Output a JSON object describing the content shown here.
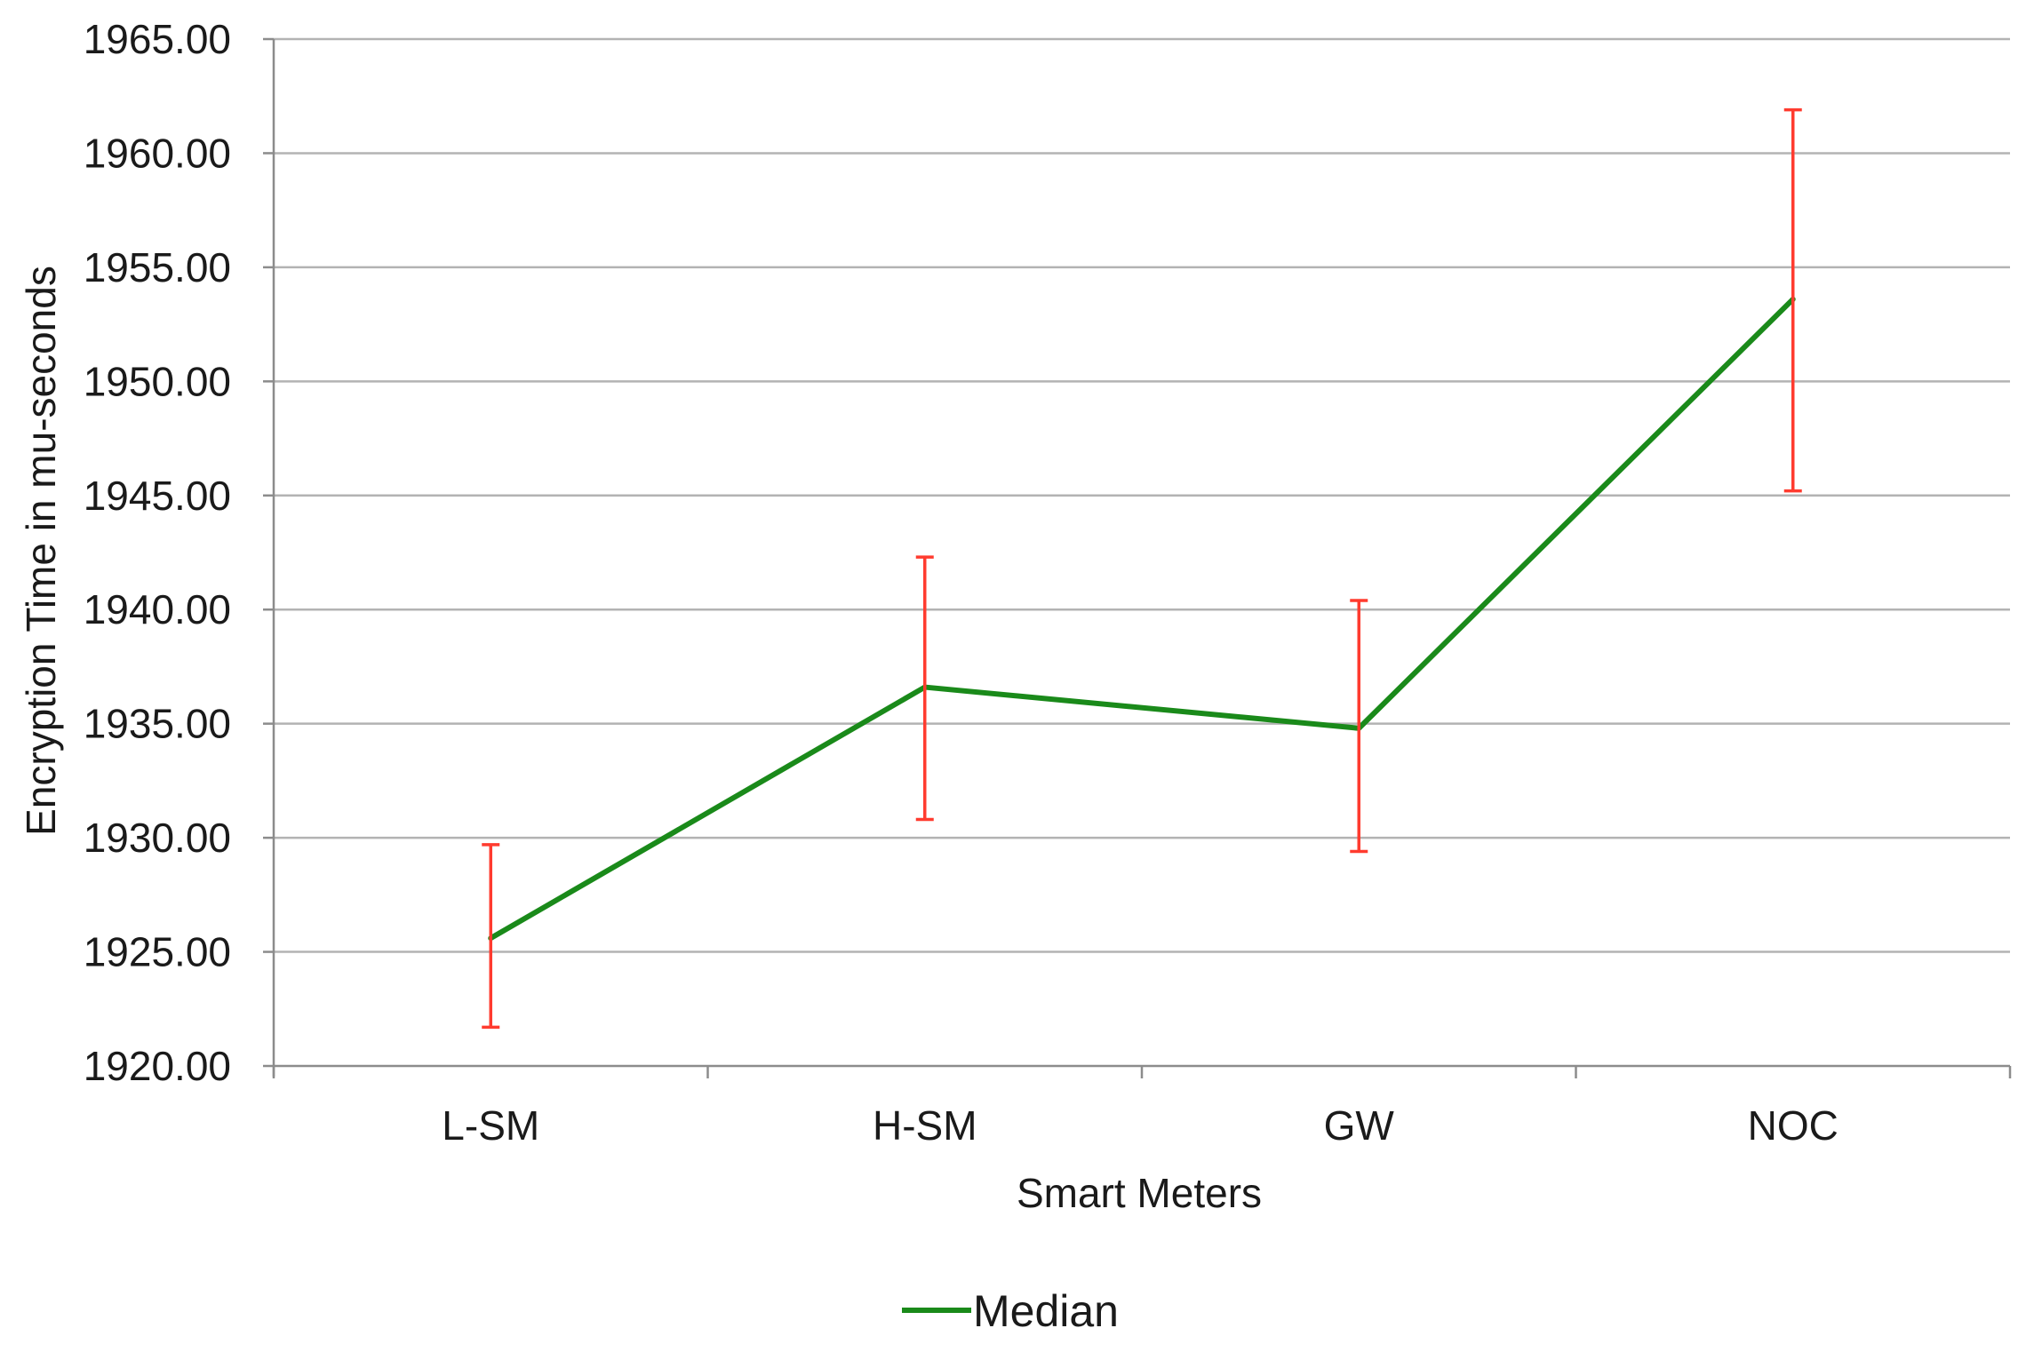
{
  "chart_data": {
    "type": "line",
    "title": "",
    "xlabel": "Smart Meters",
    "ylabel": "Encryption Time in mu-seconds",
    "categories": [
      "L-SM",
      "H-SM",
      "GW",
      "NOC"
    ],
    "ylim": [
      1920,
      1965
    ],
    "y_ticks": [
      "1920.00",
      "1925.00",
      "1930.00",
      "1935.00",
      "1940.00",
      "1945.00",
      "1950.00",
      "1955.00",
      "1960.00",
      "1965.00"
    ],
    "grid": true,
    "legend_position": "bottom",
    "series": [
      {
        "name": "Median",
        "color": "#1a8a1a",
        "values": [
          1925.6,
          1936.6,
          1934.8,
          1953.6
        ],
        "error_low": [
          1921.7,
          1930.8,
          1929.4,
          1945.2
        ],
        "error_high": [
          1929.7,
          1942.3,
          1940.4,
          1961.9
        ],
        "error_color": "#ff3b2f"
      }
    ]
  }
}
